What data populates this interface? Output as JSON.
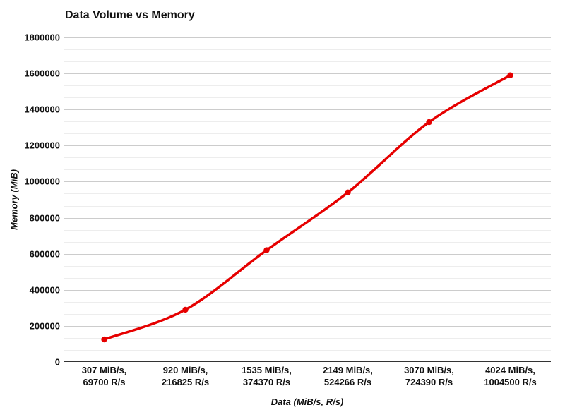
{
  "chart_data": {
    "type": "line",
    "title": "Data Volume vs Memory",
    "xlabel": "Data (MiB/s, R/s)",
    "ylabel": "Memory (MiB)",
    "categories": [
      "307 MiB/s,\n69700 R/s",
      "920 MiB/s,\n216825 R/s",
      "1535 MiB/s,\n374370 R/s",
      "2149 MiB/s,\n524266 R/s",
      "3070 MiB/s,\n724390 R/s",
      "4024 MiB/s,\n1004500 R/s"
    ],
    "series": [
      {
        "name": "Memory (MiB)",
        "values": [
          125000,
          290000,
          620000,
          940000,
          1330000,
          1590000
        ],
        "color": "#e60000",
        "smooth": true,
        "point_markers": true
      }
    ],
    "ylim": [
      0,
      1800000
    ],
    "y_major_step": 200000,
    "y_minor_divisions": 3,
    "y_tick_labels": [
      "0",
      "200000",
      "400000",
      "600000",
      "800000",
      "1000000",
      "1200000",
      "1400000",
      "1600000",
      "1800000"
    ],
    "grid": true,
    "legend": "none",
    "colors": {
      "grid_major": "#cccccc",
      "grid_minor": "#ededed",
      "axis_line": "#333333",
      "text": "#111111",
      "background": "#ffffff"
    }
  }
}
